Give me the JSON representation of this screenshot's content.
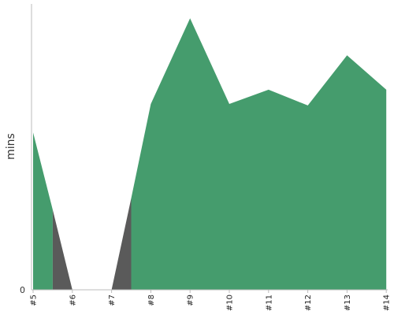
{
  "chart_data": {
    "type": "area",
    "title": "",
    "xlabel": "",
    "ylabel": "mins",
    "y_tick_label": "0",
    "categories": [
      "#5",
      "#6",
      "#7",
      "#8",
      "#9",
      "#10",
      "#11",
      "#12",
      "#13",
      "#14"
    ],
    "ylim": [
      0,
      100
    ],
    "segments": [
      {
        "color": "#459c6d",
        "points": [
          [
            0,
            55
          ],
          [
            0.5,
            28
          ],
          [
            0.5,
            0
          ],
          [
            0,
            0
          ]
        ]
      },
      {
        "color": "#5a5a5a",
        "points": [
          [
            0.5,
            28
          ],
          [
            1,
            0
          ],
          [
            0.5,
            0
          ]
        ]
      },
      {
        "color": "#5a5a5a",
        "points": [
          [
            2,
            0
          ],
          [
            2.5,
            32
          ],
          [
            2.5,
            0
          ]
        ]
      },
      {
        "color": "#459c6d",
        "points": [
          [
            2.5,
            32
          ],
          [
            3,
            65
          ],
          [
            4,
            95
          ],
          [
            5,
            65
          ],
          [
            6,
            70
          ],
          [
            7,
            64.5
          ],
          [
            8,
            82
          ],
          [
            9,
            70
          ],
          [
            9,
            0
          ],
          [
            2.5,
            0
          ]
        ]
      }
    ],
    "grid": false,
    "legend": false
  }
}
